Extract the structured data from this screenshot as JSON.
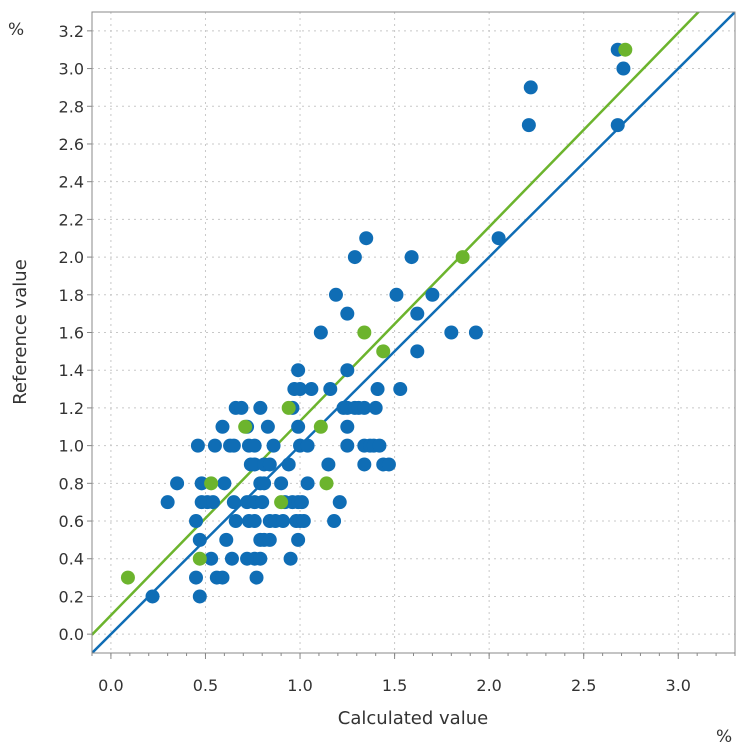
{
  "chart_data": {
    "type": "scatter",
    "xlabel": "Calculated value",
    "ylabel": "Reference value",
    "x_unit": "%",
    "y_unit": "%",
    "xlim": [
      -0.1,
      3.3
    ],
    "ylim": [
      -0.1,
      3.3
    ],
    "xticks": [
      "0.0",
      "0.5",
      "1.0",
      "1.5",
      "2.0",
      "2.5",
      "3.0"
    ],
    "yticks": [
      "0.0",
      "0.2",
      "0.4",
      "0.6",
      "0.8",
      "1.0",
      "1.2",
      "1.4",
      "1.6",
      "1.8",
      "2.0",
      "2.2",
      "2.4",
      "2.6",
      "2.8",
      "3.0",
      "3.2"
    ],
    "grid": true,
    "colors": {
      "blue": "#0f6db5",
      "green": "#6cb42d"
    },
    "series": [
      {
        "color": "#0f6db5",
        "points": [
          [
            2.68,
            3.1
          ],
          [
            2.71,
            3.0
          ],
          [
            2.22,
            2.9
          ],
          [
            2.21,
            2.7
          ],
          [
            2.68,
            2.7
          ],
          [
            1.35,
            2.1
          ],
          [
            2.05,
            2.1
          ],
          [
            1.29,
            2.0
          ],
          [
            1.59,
            2.0
          ],
          [
            1.19,
            1.8
          ],
          [
            1.51,
            1.8
          ],
          [
            1.7,
            1.8
          ],
          [
            1.25,
            1.7
          ],
          [
            1.62,
            1.7
          ],
          [
            1.11,
            1.6
          ],
          [
            1.8,
            1.6
          ],
          [
            1.93,
            1.6
          ],
          [
            1.62,
            1.5
          ],
          [
            0.99,
            1.4
          ],
          [
            1.25,
            1.4
          ],
          [
            0.97,
            1.3
          ],
          [
            1.0,
            1.3
          ],
          [
            1.06,
            1.3
          ],
          [
            1.16,
            1.3
          ],
          [
            1.41,
            1.3
          ],
          [
            1.53,
            1.3
          ],
          [
            0.66,
            1.2
          ],
          [
            0.69,
            1.2
          ],
          [
            0.79,
            1.2
          ],
          [
            0.96,
            1.2
          ],
          [
            1.23,
            1.2
          ],
          [
            1.25,
            1.2
          ],
          [
            1.29,
            1.2
          ],
          [
            1.31,
            1.2
          ],
          [
            1.34,
            1.2
          ],
          [
            1.4,
            1.2
          ],
          [
            0.59,
            1.1
          ],
          [
            0.72,
            1.1
          ],
          [
            0.83,
            1.1
          ],
          [
            0.99,
            1.1
          ],
          [
            1.25,
            1.1
          ],
          [
            0.46,
            1.0
          ],
          [
            0.55,
            1.0
          ],
          [
            0.63,
            1.0
          ],
          [
            0.65,
            1.0
          ],
          [
            0.73,
            1.0
          ],
          [
            0.76,
            1.0
          ],
          [
            0.86,
            1.0
          ],
          [
            1.0,
            1.0
          ],
          [
            1.04,
            1.0
          ],
          [
            1.25,
            1.0
          ],
          [
            1.34,
            1.0
          ],
          [
            1.37,
            1.0
          ],
          [
            1.39,
            1.0
          ],
          [
            1.42,
            1.0
          ],
          [
            0.74,
            0.9
          ],
          [
            0.76,
            0.9
          ],
          [
            0.81,
            0.9
          ],
          [
            0.84,
            0.9
          ],
          [
            0.94,
            0.9
          ],
          [
            1.15,
            0.9
          ],
          [
            1.34,
            0.9
          ],
          [
            1.44,
            0.9
          ],
          [
            1.47,
            0.9
          ],
          [
            0.35,
            0.8
          ],
          [
            0.48,
            0.8
          ],
          [
            0.6,
            0.8
          ],
          [
            0.79,
            0.8
          ],
          [
            0.81,
            0.8
          ],
          [
            0.9,
            0.8
          ],
          [
            1.04,
            0.8
          ],
          [
            0.3,
            0.7
          ],
          [
            0.48,
            0.7
          ],
          [
            0.51,
            0.7
          ],
          [
            0.54,
            0.7
          ],
          [
            0.65,
            0.7
          ],
          [
            0.72,
            0.7
          ],
          [
            0.76,
            0.7
          ],
          [
            0.8,
            0.7
          ],
          [
            0.92,
            0.7
          ],
          [
            0.96,
            0.7
          ],
          [
            0.99,
            0.7
          ],
          [
            1.01,
            0.7
          ],
          [
            1.21,
            0.7
          ],
          [
            0.45,
            0.6
          ],
          [
            0.66,
            0.6
          ],
          [
            0.73,
            0.6
          ],
          [
            0.76,
            0.6
          ],
          [
            0.84,
            0.6
          ],
          [
            0.87,
            0.6
          ],
          [
            0.91,
            0.6
          ],
          [
            0.98,
            0.6
          ],
          [
            1.0,
            0.6
          ],
          [
            1.02,
            0.6
          ],
          [
            1.18,
            0.6
          ],
          [
            0.47,
            0.5
          ],
          [
            0.61,
            0.5
          ],
          [
            0.79,
            0.5
          ],
          [
            0.81,
            0.5
          ],
          [
            0.84,
            0.5
          ],
          [
            0.99,
            0.5
          ],
          [
            0.53,
            0.4
          ],
          [
            0.64,
            0.4
          ],
          [
            0.72,
            0.4
          ],
          [
            0.76,
            0.4
          ],
          [
            0.79,
            0.4
          ],
          [
            0.95,
            0.4
          ],
          [
            0.45,
            0.3
          ],
          [
            0.56,
            0.3
          ],
          [
            0.59,
            0.3
          ],
          [
            0.77,
            0.3
          ],
          [
            0.22,
            0.2
          ],
          [
            0.47,
            0.2
          ]
        ],
        "fit_line": {
          "slope": 1.0,
          "intercept": 0.0
        }
      },
      {
        "color": "#6cb42d",
        "points": [
          [
            2.72,
            3.1
          ],
          [
            1.86,
            2.0
          ],
          [
            1.34,
            1.6
          ],
          [
            1.44,
            1.5
          ],
          [
            0.94,
            1.2
          ],
          [
            0.71,
            1.1
          ],
          [
            1.11,
            1.1
          ],
          [
            0.53,
            0.8
          ],
          [
            1.14,
            0.8
          ],
          [
            0.9,
            0.7
          ],
          [
            0.47,
            0.4
          ],
          [
            0.09,
            0.3
          ]
        ],
        "fit_line": {
          "slope": 1.03,
          "intercept": 0.1
        }
      }
    ]
  }
}
